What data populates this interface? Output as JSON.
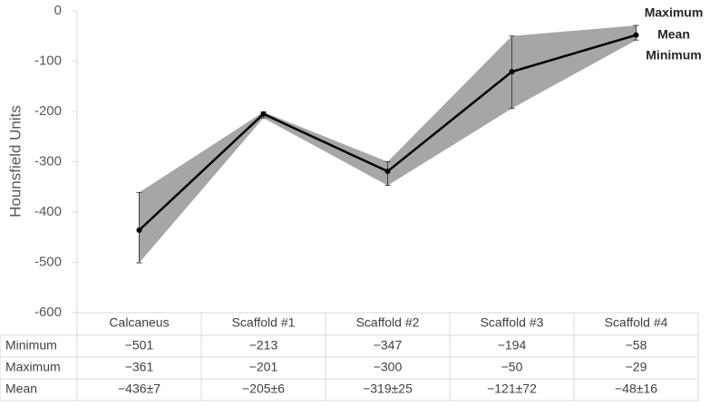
{
  "chart_data": {
    "type": "line",
    "y_label": "Hounsfield Units",
    "categories": [
      "Calcaneus",
      "Scaffold #1",
      "Scaffold #2",
      "Scaffold #3",
      "Scaffold #4"
    ],
    "series": [
      {
        "name": "Minimum",
        "values": [
          -501,
          -213,
          -347,
          -194,
          -58
        ],
        "value_labels": [
          "−501",
          "−213",
          "−347",
          "−194",
          "−58"
        ]
      },
      {
        "name": "Maximum",
        "values": [
          -361,
          -201,
          -300,
          -50,
          -29
        ],
        "value_labels": [
          "−361",
          "−201",
          "−300",
          "−50",
          "−29"
        ]
      },
      {
        "name": "Mean",
        "color": "#000000",
        "values": [
          -436,
          -205,
          -319,
          -121,
          -48
        ],
        "value_labels": [
          "−436±7",
          "−205±6",
          "−319±25",
          "−121±72",
          "−48±16"
        ]
      }
    ],
    "band_color": "#a6a6a6",
    "ylim": [
      -600,
      0
    ],
    "yticks": [
      0,
      -100,
      -200,
      -300,
      -400,
      -500,
      -600
    ]
  }
}
